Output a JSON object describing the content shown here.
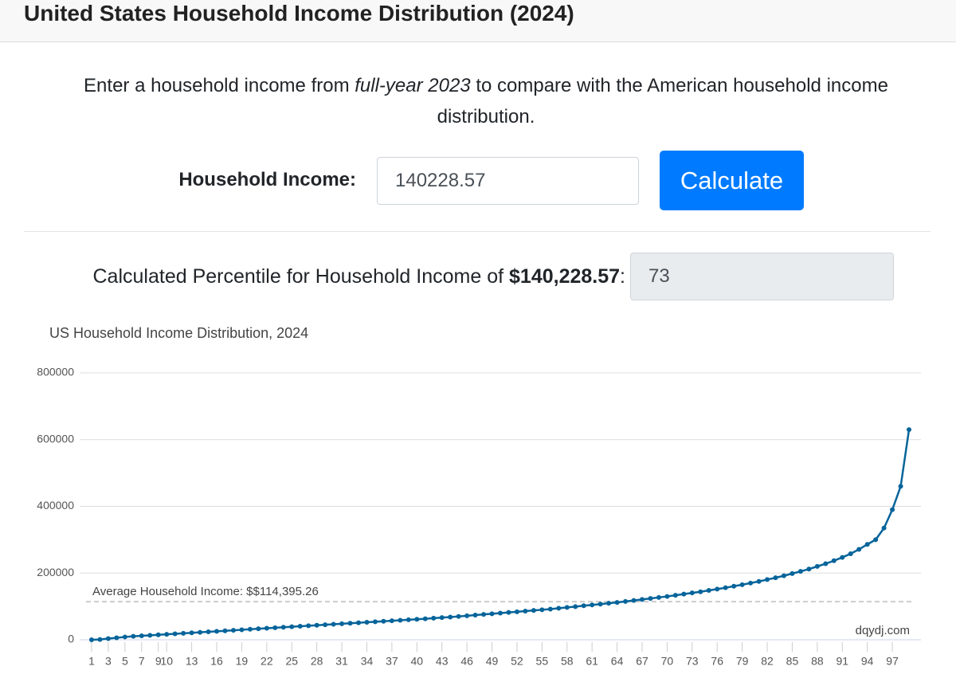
{
  "header": {
    "title": "United States Household Income Distribution (2024)"
  },
  "intro": {
    "before": "Enter a household income from ",
    "emphasis": "full-year 2023",
    "after": " to compare with the American household income distribution."
  },
  "form": {
    "label": "Household Income:",
    "input": "140228.57",
    "button": "Calculate"
  },
  "result": {
    "text": "Calculated Percentile for Household Income of ",
    "amount": "$140,228.57",
    "colon": ":",
    "percentile": 73
  },
  "chart_data": {
    "type": "line",
    "title": "US Household Income Distribution, 2024",
    "credit": "dqydj.com",
    "color": "#06649a",
    "x": [
      1,
      2,
      3,
      4,
      5,
      6,
      7,
      8,
      9,
      10,
      11,
      12,
      13,
      14,
      15,
      16,
      17,
      18,
      19,
      20,
      21,
      22,
      23,
      24,
      25,
      26,
      27,
      28,
      29,
      30,
      31,
      32,
      33,
      34,
      35,
      36,
      37,
      38,
      39,
      40,
      41,
      42,
      43,
      44,
      45,
      46,
      47,
      48,
      49,
      50,
      51,
      52,
      53,
      54,
      55,
      56,
      57,
      58,
      59,
      60,
      61,
      62,
      63,
      64,
      65,
      66,
      67,
      68,
      69,
      70,
      71,
      72,
      73,
      74,
      75,
      76,
      77,
      78,
      79,
      80,
      81,
      82,
      83,
      84,
      85,
      86,
      87,
      88,
      89,
      90,
      91,
      92,
      93,
      94,
      95,
      96,
      97,
      98,
      99
    ],
    "values": [
      0,
      1000,
      3500,
      6000,
      8500,
      10500,
      12000,
      13500,
      15000,
      16500,
      18000,
      19500,
      21000,
      22500,
      24000,
      25500,
      27000,
      28500,
      30000,
      31500,
      33000,
      34500,
      36000,
      37500,
      39000,
      40500,
      42000,
      43500,
      45000,
      46500,
      48000,
      49500,
      51000,
      52500,
      54000,
      55500,
      57000,
      58500,
      60000,
      61500,
      63000,
      64800,
      66500,
      68200,
      70000,
      72000,
      74000,
      76000,
      78000,
      80000,
      82000,
      84000,
      86000,
      88000,
      90000,
      92000,
      94500,
      97000,
      99500,
      102000,
      104500,
      107000,
      109500,
      112000,
      115000,
      118000,
      121000,
      124000,
      127000,
      130000,
      133500,
      137000,
      140500,
      144000,
      148000,
      152000,
      156000,
      160500,
      165000,
      170000,
      175000,
      180500,
      186000,
      192000,
      198500,
      205000,
      212000,
      220000,
      228000,
      237000,
      247000,
      258000,
      271000,
      286000,
      300000,
      335000,
      390000,
      460000,
      630000
    ],
    "xlim": [
      0,
      100
    ],
    "xticks": [
      1,
      3,
      5,
      7,
      9,
      10,
      13,
      16,
      19,
      22,
      25,
      28,
      31,
      34,
      37,
      40,
      43,
      46,
      49,
      52,
      55,
      58,
      61,
      64,
      67,
      70,
      73,
      76,
      79,
      82,
      85,
      88,
      91,
      94,
      97
    ],
    "ylim": [
      0,
      800000
    ],
    "yticks": [
      0,
      200000,
      400000,
      600000,
      800000
    ],
    "grid": true,
    "average": {
      "value": 114395.26,
      "label": "Average Household Income: $$114,395.26"
    }
  }
}
